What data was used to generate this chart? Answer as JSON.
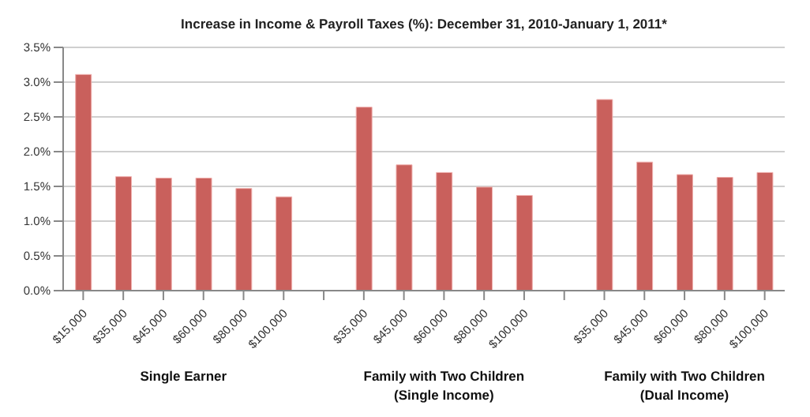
{
  "chart_data": {
    "type": "bar",
    "title": "Increase in Income & Payroll Taxes (%): December 31, 2010-January 1, 2011*",
    "categories": [
      "$15,000",
      "$35,000",
      "$45,000",
      "$60,000",
      "$80,000",
      "$100,000",
      null,
      "$35,000",
      "$45,000",
      "$60,000",
      "$80,000",
      "$100,000",
      null,
      "$35,000",
      "$45,000",
      "$60,000",
      "$80,000",
      "$100,000"
    ],
    "values": [
      3.11,
      1.64,
      1.62,
      1.62,
      1.47,
      1.35,
      null,
      2.64,
      1.81,
      1.7,
      1.49,
      1.37,
      null,
      2.75,
      1.85,
      1.67,
      1.63,
      1.7
    ],
    "color": "#c9605c",
    "ylim": [
      0,
      3.5
    ],
    "yticks": [
      {
        "value": 0,
        "label": "0.0%"
      },
      {
        "value": 0.5,
        "label": "0.5%"
      },
      {
        "value": 1,
        "label": "1.0%"
      },
      {
        "value": 1.5,
        "label": "1.5%"
      },
      {
        "value": 2,
        "label": "2.0%"
      },
      {
        "value": 2.5,
        "label": "2.5%"
      },
      {
        "value": 3,
        "label": "3.0%"
      },
      {
        "value": 3.5,
        "label": "3.5%"
      }
    ],
    "grid": "y",
    "annotations": [
      "Single Earner",
      "Family with Two Children\n(Single Income)",
      "Family with Two Children\n(Dual Income)"
    ]
  }
}
